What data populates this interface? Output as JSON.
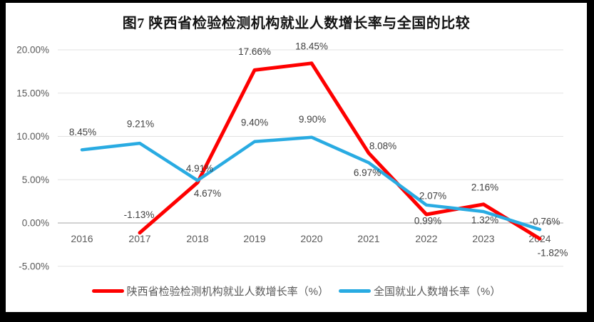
{
  "style": {
    "border_color": "#000000",
    "background": "#ffffff",
    "grid_line_color": "#e2e2e2",
    "axis_line_color": "#d2d2d2",
    "tick_label_color": "#595959",
    "category_label_color": "#595959",
    "data_label_color": "#404040",
    "legend_text_color": "#595959",
    "title_color": "#141414",
    "series_red": "#fe0000",
    "series_blue": "#29abe2"
  },
  "chart_data": {
    "type": "line",
    "title": "图7 陕西省检验检测机构就业人数增长率与全国的比较",
    "categories": [
      "2016",
      "2017",
      "2018",
      "2019",
      "2020",
      "2021",
      "2022",
      "2023",
      "2024"
    ],
    "series": [
      {
        "name": "陕西省检验检测机构就业人数增长率（%）",
        "color": "#fe0000",
        "values": [
          null,
          -1.13,
          4.67,
          17.66,
          18.45,
          8.08,
          0.99,
          2.16,
          -1.82
        ],
        "labels": [
          "",
          "-1.13%",
          "4.67%",
          "17.66%",
          "18.45%",
          "8.08%",
          "0.99%",
          "2.16%",
          "-1.82%"
        ]
      },
      {
        "name": "全国就业人数增长率（%）",
        "color": "#29abe2",
        "values": [
          8.45,
          9.21,
          4.91,
          9.4,
          9.9,
          6.97,
          2.07,
          1.32,
          -0.76
        ],
        "labels": [
          "8.45%",
          "9.21%",
          "4.91%",
          "9.40%",
          "9.90%",
          "6.97%",
          "2.07%",
          "1.32%",
          "-0.76%"
        ]
      }
    ],
    "ylim": [
      -5,
      20
    ],
    "yticks": [
      {
        "value": 20,
        "label": "20.00%"
      },
      {
        "value": 15,
        "label": "15.00%"
      },
      {
        "value": 10,
        "label": "10.00%"
      },
      {
        "value": 5,
        "label": "5.00%"
      },
      {
        "value": 0,
        "label": "0.00%"
      },
      {
        "value": -5,
        "label": "-5.00%"
      }
    ],
    "grid": true,
    "legend_position": "bottom"
  }
}
